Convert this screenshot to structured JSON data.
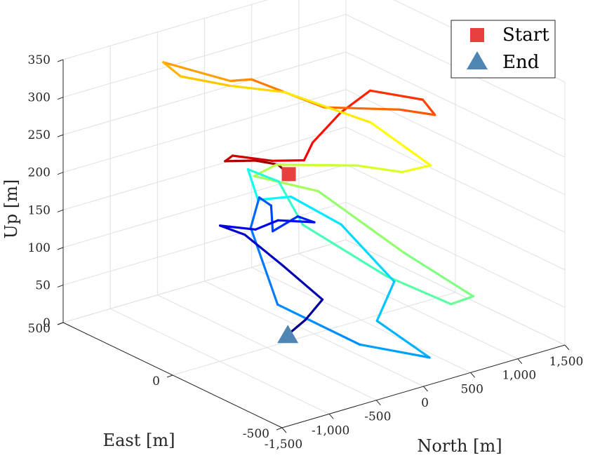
{
  "chart_data": {
    "type": "line3d",
    "xlabel": "North [m]",
    "ylabel": "East [m]",
    "zlabel": "Up [m]",
    "xlim": [
      -1500,
      1500
    ],
    "ylim": [
      -500,
      500
    ],
    "zlim": [
      0,
      350
    ],
    "xticks": [
      -1500,
      -1000,
      -500,
      0,
      500,
      1000,
      1500
    ],
    "xtick_labels": [
      "-1,500",
      "-1,000",
      "-500",
      "0",
      "500",
      "1,000",
      "1,500"
    ],
    "yticks": [
      -500,
      0,
      500
    ],
    "ytick_labels": [
      "-500",
      "0",
      "500"
    ],
    "zticks": [
      0,
      50,
      100,
      150,
      200,
      250,
      300,
      350
    ],
    "ztick_labels": [
      "0",
      "50",
      "100",
      "150",
      "200",
      "250",
      "300",
      "350"
    ],
    "grid": true,
    "colormap": "jet (colored by time)",
    "legend": {
      "position": "top-right",
      "entries": [
        {
          "label": "Start",
          "marker": "square",
          "color": "#e8403f"
        },
        {
          "label": "End",
          "marker": "triangle",
          "color": "#4f86b4"
        }
      ]
    },
    "start_point": {
      "north": 220,
      "east": 210,
      "up": 175
    },
    "end_point": {
      "north": -185,
      "east": 40,
      "up": 0
    },
    "trajectory": [
      {
        "north": 220,
        "east": 210,
        "up": 175
      },
      {
        "north": 105,
        "east": 210,
        "up": 192
      },
      {
        "north": -40,
        "east": 250,
        "up": 197
      },
      {
        "north": -270,
        "east": 290,
        "up": 199
      },
      {
        "north": -330,
        "east": 230,
        "up": 217
      },
      {
        "north": -110,
        "east": 145,
        "up": 214
      },
      {
        "north": 150,
        "east": 110,
        "up": 210
      },
      {
        "north": 450,
        "east": 200,
        "up": 210
      },
      {
        "north": 840,
        "east": 240,
        "up": 230
      },
      {
        "north": 1130,
        "east": 230,
        "up": 250
      },
      {
        "north": 1270,
        "east": 50,
        "up": 258
      },
      {
        "north": 1120,
        "east": -70,
        "up": 260
      },
      {
        "north": 650,
        "east": -110,
        "up": 290
      },
      {
        "north": 60,
        "east": -20,
        "up": 302
      },
      {
        "north": -200,
        "east": 200,
        "up": 318
      },
      {
        "north": -330,
        "east": 240,
        "up": 315
      },
      {
        "north": -670,
        "east": 400,
        "up": 330
      },
      {
        "north": -440,
        "east": 420,
        "up": 300
      },
      {
        "north": -190,
        "east": 300,
        "up": 295
      },
      {
        "north": 80,
        "east": 170,
        "up": 295
      },
      {
        "north": 510,
        "east": -40,
        "up": 268
      },
      {
        "north": 750,
        "east": -210,
        "up": 226
      },
      {
        "north": 470,
        "east": -200,
        "up": 226
      },
      {
        "north": 200,
        "east": -110,
        "up": 232
      },
      {
        "north": -50,
        "east": 150,
        "up": 206
      },
      {
        "north": -240,
        "east": 170,
        "up": 195
      },
      {
        "north": 160,
        "east": 50,
        "up": 177
      },
      {
        "north": 540,
        "east": -180,
        "up": 113
      },
      {
        "north": 760,
        "east": -400,
        "up": 78
      },
      {
        "north": 640,
        "east": -350,
        "up": 65
      },
      {
        "north": 330,
        "east": -190,
        "up": 91
      },
      {
        "north": 20,
        "east": 60,
        "up": 136
      },
      {
        "north": -50,
        "east": 140,
        "up": 185
      },
      {
        "north": -190,
        "east": 220,
        "up": 195
      },
      {
        "north": -130,
        "east": 200,
        "up": 155
      },
      {
        "north": 80,
        "east": 140,
        "up": 160
      },
      {
        "north": 380,
        "east": 40,
        "up": 126
      },
      {
        "north": 410,
        "east": -190,
        "up": 81
      },
      {
        "north": 180,
        "east": -210,
        "up": 40
      },
      {
        "north": 250,
        "east": -420,
        "up": 18
      },
      {
        "north": 20,
        "east": -200,
        "up": 13
      },
      {
        "north": -200,
        "east": 80,
        "up": 35
      },
      {
        "north": -230,
        "east": 190,
        "up": 123
      },
      {
        "north": -140,
        "east": 190,
        "up": 160
      },
      {
        "north": -60,
        "east": 170,
        "up": 149
      },
      {
        "north": -20,
        "east": 180,
        "up": 112
      },
      {
        "north": 60,
        "east": 100,
        "up": 140
      },
      {
        "north": 120,
        "east": 50,
        "up": 137
      },
      {
        "north": -10,
        "east": 160,
        "up": 129
      },
      {
        "north": -110,
        "east": 220,
        "up": 112
      },
      {
        "north": -300,
        "east": 300,
        "up": 113
      },
      {
        "north": -200,
        "east": 230,
        "up": 107
      },
      {
        "north": -60,
        "east": 120,
        "up": 77
      },
      {
        "north": 20,
        "east": -30,
        "up": 49
      },
      {
        "north": -90,
        "east": 0,
        "up": 22
      },
      {
        "north": -185,
        "east": 40,
        "up": 0
      }
    ]
  }
}
